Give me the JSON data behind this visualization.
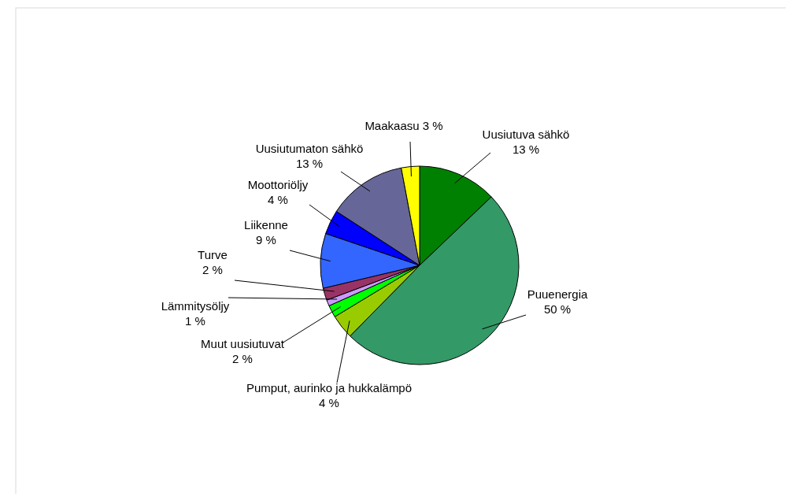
{
  "chart_data": {
    "type": "pie",
    "categories": [
      "Uusiutuva sähkö",
      "Puuenergia",
      "Pumput, aurinko ja hukkalämpö",
      "Muut uusiutuvat",
      "Lämmitysöljy",
      "Turve",
      "Liikenne",
      "Moottoriöljy",
      "Uusiutumaton sähkö",
      "Maakaasu"
    ],
    "values": [
      13,
      50,
      4,
      2,
      1,
      2,
      9,
      4,
      13,
      3
    ],
    "colors": [
      "#008000",
      "#339966",
      "#99cc00",
      "#00ff00",
      "#cc99ff",
      "#993366",
      "#3366ff",
      "#0000ff",
      "#666699",
      "#ffff00"
    ],
    "value_labels": [
      "13 %",
      "50 %",
      "4 %",
      "2 %",
      "1 %",
      "2 %",
      "9 %",
      "4 %",
      "13 %",
      "3 %"
    ],
    "legend": false
  }
}
